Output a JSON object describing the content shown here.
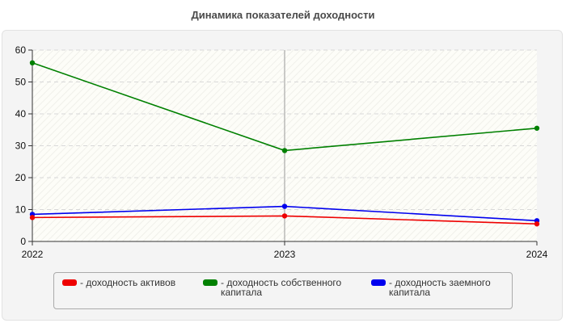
{
  "chart_data": {
    "type": "line",
    "title": "Динамика показателей доходности",
    "x": [
      "2022",
      "2023",
      "2024"
    ],
    "ylim": [
      0,
      60
    ],
    "yticks": [
      0,
      10,
      20,
      30,
      40,
      50,
      60
    ],
    "grid": true,
    "legend_position": "bottom",
    "series": [
      {
        "name": "- доходность активов",
        "color": "#ee0000",
        "values": [
          7.5,
          8.0,
          5.5
        ]
      },
      {
        "name": "- доходность собственного капитала",
        "color": "#008000",
        "values": [
          56,
          28.5,
          35.5
        ]
      },
      {
        "name": "- доходность заемного капитала",
        "color": "#0000ee",
        "values": [
          8.5,
          11.0,
          6.5
        ]
      }
    ]
  }
}
